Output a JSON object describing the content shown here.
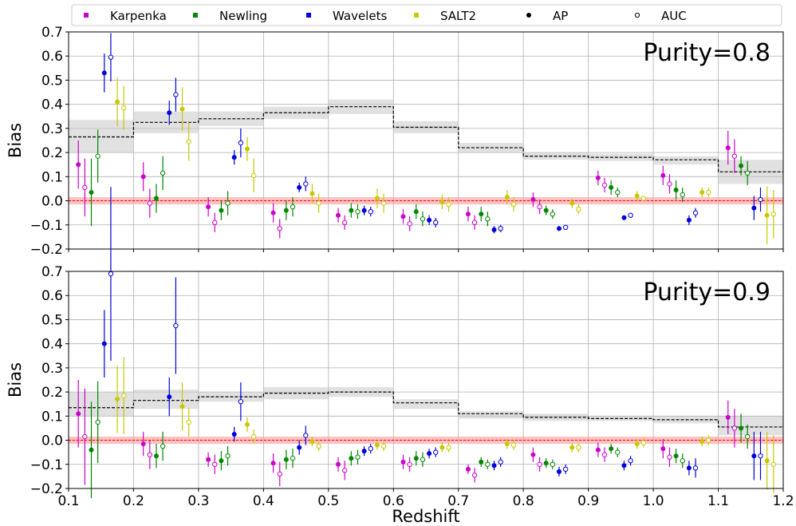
{
  "chart_data": [
    {
      "type": "scatter",
      "panel_label": "Purity=0.8",
      "ylabel": "Bias",
      "xlim": [
        0.1,
        1.2
      ],
      "ylim": [
        -0.2,
        0.7
      ],
      "xticks": [
        "0.1",
        "0.2",
        "0.3",
        "0.4",
        "0.5",
        "0.6",
        "0.7",
        "0.8",
        "0.9",
        "1.0",
        "1.1",
        "1.2"
      ],
      "yticks": [
        "−0.2",
        "−0.1",
        "0.0",
        "0.1",
        "0.2",
        "0.3",
        "0.4",
        "0.5",
        "0.6",
        "0.7"
      ],
      "grid": true,
      "reference_line": {
        "y": 0.0,
        "color": "#ff0000",
        "band": [
          -0.015,
          0.015
        ]
      },
      "step_line": {
        "bin_edges": [
          0.1,
          0.2,
          0.3,
          0.4,
          0.5,
          0.6,
          0.7,
          0.8,
          0.9,
          1.0,
          1.1,
          1.2
        ],
        "values": [
          0.265,
          0.325,
          0.34,
          0.365,
          0.39,
          0.305,
          0.22,
          0.185,
          0.18,
          0.17,
          0.12
        ],
        "band_lo": [
          0.2,
          0.28,
          0.31,
          0.34,
          0.36,
          0.28,
          0.2,
          0.17,
          0.165,
          0.15,
          0.07
        ],
        "band_hi": [
          0.335,
          0.37,
          0.37,
          0.39,
          0.42,
          0.33,
          0.24,
          0.2,
          0.195,
          0.185,
          0.17
        ]
      },
      "series": [
        {
          "name": "Karpenka",
          "color": "#cc00cc",
          "metric": "AP",
          "x": [
            0.115,
            0.215,
            0.315,
            0.415,
            0.515,
            0.615,
            0.715,
            0.815,
            0.915,
            1.015,
            1.115
          ],
          "y": [
            0.15,
            0.1,
            -0.025,
            -0.05,
            -0.06,
            -0.065,
            -0.055,
            0.005,
            0.095,
            0.105,
            0.22
          ],
          "err": [
            0.1,
            0.06,
            0.04,
            0.04,
            0.03,
            0.03,
            0.03,
            0.03,
            0.03,
            0.04,
            0.07
          ]
        },
        {
          "name": "Karpenka",
          "color": "#cc00cc",
          "metric": "AUC",
          "x": [
            0.125,
            0.225,
            0.325,
            0.425,
            0.525,
            0.625,
            0.725,
            0.825,
            0.925,
            1.025,
            1.125
          ],
          "y": [
            0.055,
            -0.01,
            -0.09,
            -0.115,
            -0.09,
            -0.095,
            -0.09,
            -0.025,
            0.065,
            0.07,
            0.185
          ],
          "err": [
            0.12,
            0.06,
            0.04,
            0.04,
            0.03,
            0.03,
            0.03,
            0.03,
            0.03,
            0.04,
            0.07
          ]
        },
        {
          "name": "Newling",
          "color": "#008800",
          "metric": "AP",
          "x": [
            0.135,
            0.235,
            0.335,
            0.435,
            0.535,
            0.635,
            0.735,
            0.835,
            0.935,
            1.035,
            1.135
          ],
          "y": [
            0.035,
            0.01,
            -0.04,
            -0.04,
            -0.04,
            -0.045,
            -0.055,
            -0.04,
            0.055,
            0.045,
            0.145
          ],
          "err": [
            0.14,
            0.06,
            0.04,
            0.04,
            0.03,
            0.03,
            0.03,
            0.02,
            0.03,
            0.04,
            0.04
          ]
        },
        {
          "name": "Newling",
          "color": "#008800",
          "metric": "AUC",
          "x": [
            0.145,
            0.245,
            0.345,
            0.445,
            0.545,
            0.645,
            0.745,
            0.845,
            0.945,
            1.045,
            1.145
          ],
          "y": [
            0.185,
            0.115,
            -0.01,
            -0.025,
            -0.045,
            -0.075,
            -0.075,
            -0.055,
            0.035,
            0.025,
            0.115
          ],
          "err": [
            0.11,
            0.07,
            0.05,
            0.04,
            0.03,
            0.03,
            0.03,
            0.02,
            0.02,
            0.03,
            0.05
          ]
        },
        {
          "name": "Wavelets",
          "color": "#0000dd",
          "metric": "AP",
          "x": [
            0.155,
            0.255,
            0.355,
            0.455,
            0.555,
            0.655,
            0.755,
            0.855,
            0.955,
            1.055,
            1.155
          ],
          "y": [
            0.53,
            0.365,
            0.18,
            0.055,
            -0.04,
            -0.08,
            -0.12,
            -0.115,
            -0.07,
            -0.08,
            -0.03
          ],
          "err": [
            0.08,
            0.05,
            0.03,
            0.02,
            0.02,
            0.02,
            0.015,
            0.01,
            0.01,
            0.02,
            0.05
          ]
        },
        {
          "name": "Wavelets",
          "color": "#0000dd",
          "metric": "AUC",
          "x": [
            0.165,
            0.265,
            0.365,
            0.465,
            0.565,
            0.665,
            0.765,
            0.865,
            0.965,
            1.065,
            1.165
          ],
          "y": [
            0.595,
            0.44,
            0.24,
            0.07,
            -0.045,
            -0.09,
            -0.115,
            -0.11,
            -0.06,
            -0.05,
            0.005
          ],
          "err": [
            0.1,
            0.07,
            0.06,
            0.03,
            0.02,
            0.02,
            0.015,
            0.01,
            0.01,
            0.02,
            0.05
          ]
        },
        {
          "name": "SALT2",
          "color": "#c8c800",
          "metric": "AP",
          "x": [
            0.175,
            0.275,
            0.375,
            0.475,
            0.575,
            0.675,
            0.775,
            0.875,
            0.975,
            1.075,
            1.175
          ],
          "y": [
            0.41,
            0.38,
            0.215,
            0.03,
            0.01,
            -0.005,
            0.015,
            -0.01,
            0.02,
            0.035,
            -0.06
          ],
          "err": [
            0.1,
            0.09,
            0.05,
            0.04,
            0.04,
            0.03,
            0.03,
            0.02,
            0.02,
            0.02,
            0.12
          ]
        },
        {
          "name": "SALT2",
          "color": "#c8c800",
          "metric": "AUC",
          "x": [
            0.185,
            0.285,
            0.385,
            0.485,
            0.585,
            0.685,
            0.785,
            0.885,
            0.985,
            1.085,
            1.185
          ],
          "y": [
            0.385,
            0.245,
            0.105,
            -0.01,
            -0.01,
            -0.015,
            -0.015,
            -0.035,
            0.01,
            0.035,
            -0.055
          ],
          "err": [
            0.09,
            0.08,
            0.07,
            0.04,
            0.04,
            0.03,
            0.03,
            0.02,
            0.01,
            0.02,
            0.1
          ]
        }
      ]
    },
    {
      "type": "scatter",
      "panel_label": "Purity=0.9",
      "ylabel": "Bias",
      "xlabel": "Redshift",
      "xlim": [
        0.1,
        1.2
      ],
      "ylim": [
        -0.2,
        0.7
      ],
      "xticks": [
        "0.1",
        "0.2",
        "0.3",
        "0.4",
        "0.5",
        "0.6",
        "0.7",
        "0.8",
        "0.9",
        "1.0",
        "1.1",
        "1.2"
      ],
      "yticks": [
        "−0.2",
        "−0.1",
        "0.0",
        "0.1",
        "0.2",
        "0.3",
        "0.4",
        "0.5",
        "0.6",
        "0.7"
      ],
      "grid": true,
      "reference_line": {
        "y": 0.0,
        "color": "#ff0000",
        "band": [
          -0.015,
          0.015
        ]
      },
      "step_line": {
        "bin_edges": [
          0.1,
          0.2,
          0.3,
          0.4,
          0.5,
          0.6,
          0.7,
          0.8,
          0.9,
          1.0,
          1.1,
          1.2
        ],
        "values": [
          0.135,
          0.165,
          0.18,
          0.195,
          0.2,
          0.155,
          0.11,
          0.095,
          0.09,
          0.085,
          0.055
        ],
        "band_lo": [
          0.1,
          0.13,
          0.16,
          0.17,
          0.18,
          0.13,
          0.09,
          0.08,
          0.08,
          0.07,
          0.02
        ],
        "band_hi": [
          0.2,
          0.21,
          0.2,
          0.22,
          0.22,
          0.17,
          0.12,
          0.11,
          0.1,
          0.1,
          0.1
        ]
      },
      "series": [
        {
          "name": "Karpenka",
          "color": "#cc00cc",
          "metric": "AP",
          "x": [
            0.115,
            0.215,
            0.315,
            0.415,
            0.515,
            0.615,
            0.715,
            0.815,
            0.915,
            1.015,
            1.115
          ],
          "y": [
            0.11,
            -0.015,
            -0.08,
            -0.095,
            -0.1,
            -0.09,
            -0.12,
            -0.06,
            -0.04,
            -0.035,
            0.095
          ],
          "err": [
            0.14,
            0.05,
            0.03,
            0.04,
            0.03,
            0.03,
            0.02,
            0.03,
            0.03,
            0.04,
            0.07
          ]
        },
        {
          "name": "Karpenka",
          "color": "#cc00cc",
          "metric": "AUC",
          "x": [
            0.125,
            0.225,
            0.325,
            0.425,
            0.525,
            0.625,
            0.725,
            0.825,
            0.925,
            1.025,
            1.125
          ],
          "y": [
            0.015,
            -0.06,
            -0.1,
            -0.14,
            -0.125,
            -0.1,
            -0.145,
            -0.1,
            -0.06,
            -0.07,
            0.05
          ],
          "err": [
            0.2,
            0.06,
            0.04,
            0.05,
            0.04,
            0.03,
            0.03,
            0.03,
            0.03,
            0.04,
            0.08
          ]
        },
        {
          "name": "Newling",
          "color": "#008800",
          "metric": "AP",
          "x": [
            0.135,
            0.235,
            0.335,
            0.435,
            0.535,
            0.635,
            0.735,
            0.835,
            0.935,
            1.035,
            1.135
          ],
          "y": [
            -0.04,
            -0.065,
            -0.085,
            -0.08,
            -0.075,
            -0.075,
            -0.09,
            -0.095,
            -0.035,
            -0.065,
            0.05
          ],
          "err": [
            0.2,
            0.05,
            0.04,
            0.04,
            0.03,
            0.03,
            0.02,
            0.02,
            0.02,
            0.03,
            0.06
          ]
        },
        {
          "name": "Newling",
          "color": "#008800",
          "metric": "AUC",
          "x": [
            0.145,
            0.245,
            0.345,
            0.445,
            0.545,
            0.645,
            0.745,
            0.845,
            0.945,
            1.045,
            1.145
          ],
          "y": [
            0.075,
            -0.025,
            -0.065,
            -0.075,
            -0.07,
            -0.08,
            -0.1,
            -0.1,
            -0.05,
            -0.085,
            0.015
          ],
          "err": [
            0.17,
            0.06,
            0.04,
            0.04,
            0.03,
            0.03,
            0.02,
            0.02,
            0.02,
            0.03,
            0.05
          ]
        },
        {
          "name": "Wavelets",
          "color": "#0000dd",
          "metric": "AP",
          "x": [
            0.155,
            0.255,
            0.355,
            0.455,
            0.555,
            0.655,
            0.755,
            0.855,
            0.955,
            1.055,
            1.155
          ],
          "y": [
            0.4,
            0.18,
            0.025,
            -0.03,
            -0.045,
            -0.055,
            -0.105,
            -0.13,
            -0.105,
            -0.115,
            -0.065
          ],
          "err": [
            0.14,
            0.08,
            0.03,
            0.03,
            0.02,
            0.02,
            0.02,
            0.02,
            0.02,
            0.03,
            0.1
          ]
        },
        {
          "name": "Wavelets",
          "color": "#0000dd",
          "metric": "AUC",
          "x": [
            0.165,
            0.265,
            0.365,
            0.465,
            0.565,
            0.665,
            0.765,
            0.865,
            0.965,
            1.065,
            1.165
          ],
          "y": [
            0.69,
            0.475,
            0.16,
            0.02,
            -0.035,
            -0.05,
            -0.09,
            -0.12,
            -0.085,
            -0.115,
            -0.065
          ],
          "err": [
            0.36,
            0.2,
            0.08,
            0.04,
            0.02,
            0.02,
            0.02,
            0.02,
            0.02,
            0.04,
            0.1
          ]
        },
        {
          "name": "SALT2",
          "color": "#c8c800",
          "metric": "AP",
          "x": [
            0.175,
            0.275,
            0.375,
            0.475,
            0.575,
            0.675,
            0.775,
            0.875,
            0.975,
            1.075,
            1.175
          ],
          "y": [
            0.17,
            0.14,
            0.065,
            -0.005,
            -0.02,
            -0.03,
            -0.015,
            -0.03,
            -0.015,
            -0.005,
            -0.085
          ],
          "err": [
            0.14,
            0.1,
            0.03,
            0.02,
            0.02,
            0.02,
            0.02,
            0.02,
            0.02,
            0.02,
            0.12
          ]
        },
        {
          "name": "SALT2",
          "color": "#c8c800",
          "metric": "AUC",
          "x": [
            0.185,
            0.285,
            0.385,
            0.485,
            0.585,
            0.685,
            0.785,
            0.885,
            0.985,
            1.085,
            1.185
          ],
          "y": [
            0.185,
            0.075,
            0.015,
            -0.025,
            -0.025,
            -0.03,
            -0.02,
            -0.03,
            -0.01,
            0.0,
            -0.1
          ],
          "err": [
            0.16,
            0.06,
            0.03,
            0.02,
            0.02,
            0.02,
            0.02,
            0.02,
            0.02,
            0.02,
            0.12
          ]
        }
      ]
    }
  ],
  "legend": {
    "placement": "top",
    "entries": [
      {
        "label": "Karpenka",
        "color": "#cc00cc",
        "marker": "square"
      },
      {
        "label": "Newling",
        "color": "#008800",
        "marker": "square"
      },
      {
        "label": "Wavelets",
        "color": "#0000dd",
        "marker": "square"
      },
      {
        "label": "SALT2",
        "color": "#c8c800",
        "marker": "square"
      },
      {
        "label": "AP",
        "color": "#000000",
        "marker": "filled-circle"
      },
      {
        "label": "AUC",
        "color": "#000000",
        "marker": "open-circle"
      }
    ]
  }
}
